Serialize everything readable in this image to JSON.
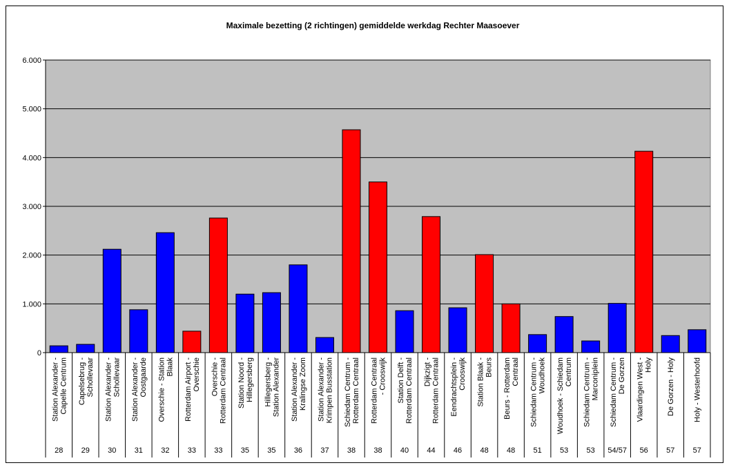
{
  "chart_data": {
    "type": "bar",
    "title": "Maximale bezetting (2 richtingen) gemiddelde werkdag Rechter Maasoever",
    "categories": [
      "Station Alexander - Capelle Centrum",
      "Capelsebrug - Schollevaar",
      "Station Alexander - Schollevaar",
      "Station Alexander - Oostgaarde",
      "Overschie - Station Blaak",
      "Rotterdam Airport - Overschie",
      "Overschie - Rotterdam Centraal",
      "Station Noord - Hillegersberg",
      "Hillegersberg - Station Alexander",
      "Station Alexander - Kralingse Zoom",
      "Station Alexander - Krimpen Busstation",
      "Schiedam Centrum - Rotterdam Centraal",
      "Rotterdam Centraal - Crooswijk",
      "Station Delft - Rotterdam Centraal",
      "Dijkzigt - Rotterdam Centraal",
      "Eendrachtsplein - Crooswijk",
      "Station Blaak - Beurs",
      "Beurs - Rotterdam Centraal",
      "Schiedam Centrum - Woudhoek",
      "Woudhoek - Schiedam Centrum",
      "Schiedam Centrum - Marconiplein",
      "Schiedam Centrum - De Gorzen",
      "Vlaardingen West - Holy",
      "De Gorzen - Holy",
      "Holy - Westerhoofd"
    ],
    "lines": [
      "28",
      "29",
      "30",
      "31",
      "32",
      "33",
      "33",
      "35",
      "35",
      "36",
      "37",
      "38",
      "38",
      "40",
      "44",
      "46",
      "48",
      "48",
      "51",
      "53",
      "53",
      "54/57",
      "56",
      "57",
      "57"
    ],
    "values": [
      140,
      170,
      2120,
      880,
      2460,
      440,
      2760,
      1200,
      1230,
      1800,
      310,
      4570,
      3500,
      860,
      2790,
      920,
      2010,
      1000,
      370,
      740,
      240,
      1010,
      4130,
      350,
      470
    ],
    "colors": [
      "#0000ff",
      "#0000ff",
      "#0000ff",
      "#0000ff",
      "#0000ff",
      "#ff0000",
      "#ff0000",
      "#0000ff",
      "#0000ff",
      "#0000ff",
      "#0000ff",
      "#ff0000",
      "#ff0000",
      "#0000ff",
      "#ff0000",
      "#0000ff",
      "#ff0000",
      "#ff0000",
      "#0000ff",
      "#0000ff",
      "#0000ff",
      "#0000ff",
      "#ff0000",
      "#0000ff",
      "#0000ff"
    ],
    "ylim": [
      0,
      6000
    ],
    "yticks": [
      0,
      {
        "value": 1000,
        "label": "1.000"
      },
      {
        "value": 2000,
        "label": "2.000"
      },
      {
        "value": 3000,
        "label": "3.000"
      },
      {
        "value": 4000,
        "label": "4.000"
      },
      {
        "value": 5000,
        "label": "5.000"
      },
      {
        "value": 6000,
        "label": "6.000"
      }
    ],
    "grid": true
  }
}
